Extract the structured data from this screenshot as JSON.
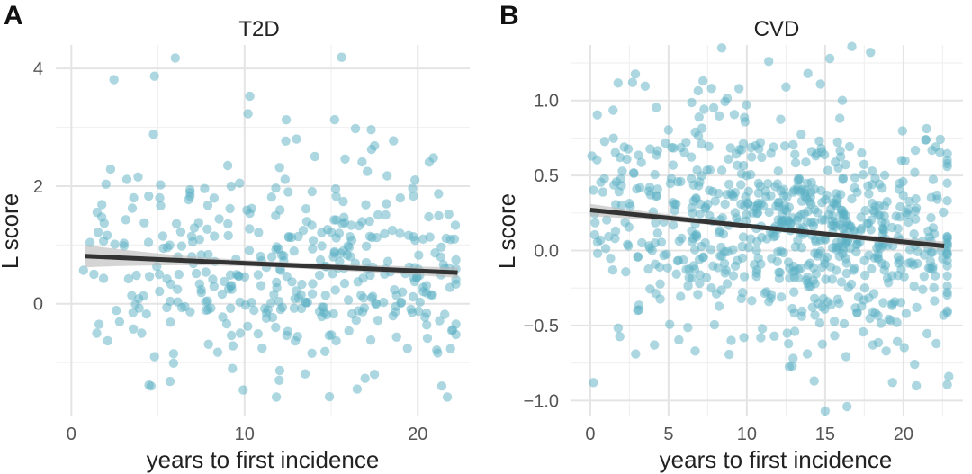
{
  "chart_data": [
    {
      "type": "scatter",
      "panel_label": "A",
      "title": "T2D",
      "xlabel": "years to first incidence",
      "ylabel": "L score",
      "xlim": [
        -0.9,
        23.0
      ],
      "ylim": [
        -1.9,
        4.4
      ],
      "x_ticks": [
        0,
        10,
        20
      ],
      "x_tick_labels": [
        "0",
        "10",
        "20"
      ],
      "x_minor_ticks": [
        5,
        15
      ],
      "y_ticks": [
        0,
        2,
        4
      ],
      "y_tick_labels": [
        "0",
        "2",
        "4"
      ],
      "y_minor_ticks": [
        -1,
        1,
        3
      ],
      "grid": true,
      "point_color": "#5aafc4",
      "fit_line_color": "#333333",
      "confidence_band_color": "#b8b8b8",
      "trend": {
        "x": [
          0.8,
          22.3
        ],
        "y": [
          0.81,
          0.53
        ]
      },
      "band_halfwidth_at_ends": [
        0.19,
        0.09
      ],
      "band_halfwidth_mid": 0.05,
      "outliers": [
        [
          6.0,
          4.18
        ],
        [
          15.6,
          4.19
        ],
        [
          4.8,
          3.87
        ],
        [
          10.3,
          3.53
        ],
        [
          10.2,
          3.23
        ],
        [
          15.2,
          3.13
        ],
        [
          16.4,
          2.98
        ],
        [
          13.0,
          2.8
        ],
        [
          18.6,
          2.77
        ],
        [
          3.6,
          1.8
        ],
        [
          5.1,
          1.8
        ],
        [
          4.6,
          -1.4
        ],
        [
          5.7,
          -1.32
        ],
        [
          2.1,
          -0.63
        ],
        [
          5.9,
          -1.01
        ],
        [
          5.9,
          -0.85
        ],
        [
          1.6,
          -0.35
        ],
        [
          14.9,
          -1.58
        ],
        [
          16.5,
          -1.45
        ],
        [
          17.5,
          -1.2
        ],
        [
          0.7,
          0.57
        ],
        [
          22.2,
          0.41
        ],
        [
          4.8,
          -0.9
        ],
        [
          9.3,
          -1.1
        ],
        [
          12.0,
          -1.3
        ]
      ],
      "cloud": {
        "n": 380,
        "x_range": [
          1.0,
          22.2
        ],
        "center_x": 15.0,
        "spread_x": 4.5,
        "y_center": 0.75,
        "y_sd": 0.85,
        "seed": 11
      }
    },
    {
      "type": "scatter",
      "panel_label": "B",
      "title": "CVD",
      "xlabel": "years to first incidence",
      "ylabel": "L score",
      "xlim": [
        -1.2,
        23.8
      ],
      "ylim": [
        -1.1,
        1.37
      ],
      "x_ticks": [
        0,
        5,
        10,
        15,
        20
      ],
      "x_tick_labels": [
        "0",
        "5",
        "10",
        "15",
        "20"
      ],
      "x_minor_ticks": [
        2.5,
        7.5,
        12.5,
        17.5,
        22.5
      ],
      "y_ticks": [
        -1.0,
        -0.5,
        0.0,
        0.5,
        1.0
      ],
      "y_tick_labels": [
        "−1.0",
        "−0.5",
        "0.0",
        "0.5",
        "1.0"
      ],
      "y_minor_ticks": [
        -0.75,
        -0.25,
        0.25,
        0.75,
        1.25
      ],
      "grid": true,
      "point_color": "#5aafc4",
      "fit_line_color": "#333333",
      "confidence_band_color": "#b8b8b8",
      "trend": {
        "x": [
          0.0,
          22.6
        ],
        "y": [
          0.27,
          0.03
        ]
      },
      "band_halfwidth_at_ends": [
        0.04,
        0.03
      ],
      "band_halfwidth_mid": 0.015,
      "outliers": [
        [
          8.4,
          1.35
        ],
        [
          16.7,
          1.36
        ],
        [
          17.9,
          1.32
        ],
        [
          15.3,
          1.28
        ],
        [
          11.4,
          1.26
        ],
        [
          13.9,
          1.18
        ],
        [
          2.7,
          1.12
        ],
        [
          7.2,
          1.13
        ],
        [
          9.5,
          1.08
        ],
        [
          12.5,
          1.09
        ],
        [
          14.7,
          1.11
        ],
        [
          16.1,
          1.0
        ],
        [
          0.2,
          -0.88
        ],
        [
          15.0,
          -1.07
        ],
        [
          16.4,
          -1.04
        ],
        [
          14.3,
          -0.87
        ],
        [
          22.9,
          -0.84
        ],
        [
          19.3,
          -0.88
        ],
        [
          2.9,
          -0.69
        ],
        [
          12.9,
          -0.77
        ],
        [
          4.1,
          -0.63
        ],
        [
          6.7,
          -0.67
        ],
        [
          18.9,
          -0.67
        ],
        [
          9.0,
          -0.6
        ],
        [
          0.1,
          0.63
        ]
      ],
      "cloud": {
        "n": 740,
        "x_range": [
          0.2,
          22.8
        ],
        "center_x": 14.0,
        "spread_x": 5.5,
        "y_center": 0.12,
        "y_sd": 0.33,
        "seed": 29
      }
    }
  ]
}
